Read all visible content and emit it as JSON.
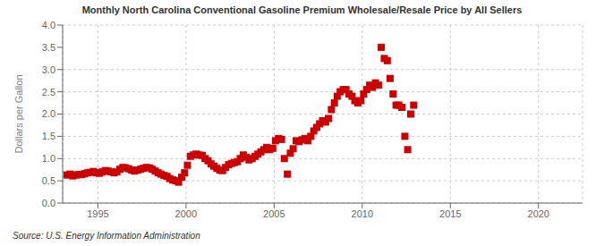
{
  "chart_data": {
    "type": "scatter",
    "title": "Monthly North Carolina Conventional Gasoline Premium Wholesale/Resale Price by All Sellers",
    "y_label": "Dollars per Gallon",
    "annotations": [
      "Source: U.S. Energy Information Administration"
    ],
    "color": "#cc0000",
    "marker": "square",
    "grid": true,
    "xlim": [
      1993.0,
      2022.5
    ],
    "ylim": [
      0.0,
      4.0
    ],
    "xticks": [
      1995,
      2000,
      2005,
      2010,
      2015,
      2020
    ],
    "yticks": [
      {
        "value": 0.0,
        "label": "0.0"
      },
      0.5,
      {
        "value": 1.0,
        "label": "1.0"
      },
      1.5,
      {
        "value": 2.0,
        "label": "2.0"
      },
      2.5,
      {
        "value": 3.0,
        "label": "3.0"
      },
      3.5,
      {
        "value": 4.0,
        "label": "4.0"
      }
    ],
    "x": [
      1993.25,
      1993.42,
      1993.58,
      1993.75,
      1993.92,
      1994.08,
      1994.25,
      1994.42,
      1994.58,
      1994.75,
      1994.92,
      1995.08,
      1995.25,
      1995.42,
      1995.58,
      1995.75,
      1995.92,
      1996.08,
      1996.25,
      1996.42,
      1996.58,
      1996.75,
      1996.92,
      1997.08,
      1997.25,
      1997.42,
      1997.58,
      1997.75,
      1997.92,
      1998.08,
      1998.25,
      1998.42,
      1998.58,
      1998.75,
      1998.92,
      1999.08,
      1999.25,
      1999.42,
      1999.58,
      1999.75,
      1999.92,
      2000.08,
      2000.25,
      2000.42,
      2000.58,
      2000.75,
      2000.92,
      2001.08,
      2001.25,
      2001.42,
      2001.58,
      2001.75,
      2001.92,
      2002.08,
      2002.25,
      2002.42,
      2002.58,
      2002.75,
      2002.92,
      2003.08,
      2003.25,
      2003.42,
      2003.58,
      2003.75,
      2003.92,
      2004.08,
      2004.25,
      2004.42,
      2004.58,
      2004.75,
      2004.92,
      2005.08,
      2005.25,
      2005.42,
      2005.58,
      2005.75,
      2005.92,
      2006.08,
      2006.25,
      2006.42,
      2006.58,
      2006.75,
      2006.92,
      2007.08,
      2007.25,
      2007.42,
      2007.58,
      2007.75,
      2007.92,
      2008.08,
      2008.25,
      2008.42,
      2008.58,
      2008.75,
      2008.92,
      2009.08,
      2009.25,
      2009.42,
      2009.58,
      2009.75,
      2009.92,
      2010.08,
      2010.25,
      2010.42,
      2010.58,
      2010.75,
      2010.92,
      2011.08,
      2011.25,
      2011.42,
      2011.58,
      2011.75,
      2011.92,
      2012.08,
      2012.25,
      2012.42,
      2012.58,
      2012.75,
      2012.92
    ],
    "values": [
      0.63,
      0.65,
      0.61,
      0.63,
      0.64,
      0.64,
      0.66,
      0.68,
      0.69,
      0.71,
      0.68,
      0.67,
      0.7,
      0.73,
      0.72,
      0.7,
      0.68,
      0.7,
      0.76,
      0.8,
      0.79,
      0.77,
      0.74,
      0.72,
      0.74,
      0.76,
      0.78,
      0.8,
      0.79,
      0.76,
      0.72,
      0.68,
      0.65,
      0.62,
      0.6,
      0.55,
      0.52,
      0.5,
      0.47,
      0.58,
      0.68,
      0.85,
      1.05,
      1.08,
      1.1,
      1.08,
      1.07,
      1.0,
      0.95,
      0.88,
      0.83,
      0.78,
      0.74,
      0.73,
      0.8,
      0.86,
      0.89,
      0.91,
      0.93,
      1.0,
      1.08,
      1.03,
      0.97,
      1.0,
      1.05,
      1.1,
      1.15,
      1.2,
      1.25,
      1.2,
      1.23,
      1.4,
      1.45,
      1.43,
      1.0,
      0.65,
      1.12,
      1.22,
      1.4,
      1.38,
      1.42,
      1.45,
      1.4,
      1.5,
      1.62,
      1.7,
      1.78,
      1.85,
      1.82,
      1.9,
      2.1,
      2.25,
      2.4,
      2.5,
      2.55,
      2.55,
      2.45,
      2.4,
      2.3,
      2.25,
      2.3,
      2.45,
      2.55,
      2.65,
      2.6,
      2.7,
      2.65,
      3.5,
      3.25,
      3.2,
      2.8,
      2.45,
      2.2,
      2.2,
      2.15,
      1.5,
      1.2,
      2.0,
      2.2
    ]
  }
}
